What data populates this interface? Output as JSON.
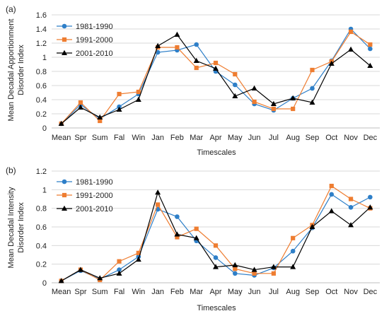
{
  "colors": {
    "series_1981_1990": "#2e7fc8",
    "series_1991_2000": "#ee7d31",
    "series_2001_2010": "#000000",
    "grid": "#d9d9d9",
    "axis": "#bfbfbf"
  },
  "chart_data": [
    {
      "type": "line",
      "panel_label": "(a)",
      "xlabel": "Timescales",
      "ylabel_lines": [
        "Mean Decadal Apportionment",
        "Disorder Index"
      ],
      "ylim": [
        0,
        1.6
      ],
      "yticks": [
        "0",
        "0.2",
        "0.4",
        "0.6",
        "0.8",
        "1",
        "1.2",
        "1.4",
        "1.6"
      ],
      "grid": "horizontal",
      "legend_position": "top-left",
      "categories": [
        "Mean",
        "Spr",
        "Sum",
        "Fal",
        "Win",
        "Jan",
        "Feb",
        "Mar",
        "Apr",
        "May",
        "Jun",
        "Jul",
        "Aug",
        "Sep",
        "Oct",
        "Nov",
        "Dec"
      ],
      "series": [
        {
          "name": "1981-1990",
          "marker": "circle",
          "values": [
            0.06,
            0.33,
            0.13,
            0.3,
            0.48,
            1.07,
            1.1,
            1.18,
            0.8,
            0.61,
            0.34,
            0.25,
            0.42,
            0.56,
            0.95,
            1.4,
            1.12
          ]
        },
        {
          "name": "1991-2000",
          "marker": "square",
          "values": [
            0.06,
            0.36,
            0.1,
            0.48,
            0.51,
            1.14,
            1.14,
            0.85,
            0.92,
            0.76,
            0.37,
            0.27,
            0.27,
            0.82,
            0.94,
            1.36,
            1.18
          ]
        },
        {
          "name": "2001-2010",
          "marker": "triangle",
          "values": [
            0.06,
            0.29,
            0.15,
            0.26,
            0.4,
            1.16,
            1.32,
            0.95,
            0.84,
            0.45,
            0.56,
            0.34,
            0.42,
            0.36,
            0.91,
            1.11,
            0.88
          ]
        }
      ]
    },
    {
      "type": "line",
      "panel_label": "(b)",
      "xlabel": "Timescales",
      "ylabel_lines": [
        "Mean Decadal Intensity",
        "Disorder Index"
      ],
      "ylim": [
        0,
        1.2
      ],
      "yticks": [
        "0",
        "0.2",
        "0.4",
        "0.6",
        "0.8",
        "1",
        "1.2"
      ],
      "grid": "horizontal",
      "legend_position": "top-left",
      "categories": [
        "Mean",
        "Spr",
        "Sum",
        "Fal",
        "Win",
        "Jan",
        "Feb",
        "Mar",
        "Apr",
        "May",
        "Jun",
        "Jul",
        "Aug",
        "Sep",
        "Oct",
        "Nov",
        "Dec"
      ],
      "series": [
        {
          "name": "1981-1990",
          "marker": "circle",
          "values": [
            0.02,
            0.13,
            0.04,
            0.14,
            0.28,
            0.79,
            0.71,
            0.45,
            0.27,
            0.1,
            0.08,
            0.16,
            0.34,
            0.59,
            0.95,
            0.81,
            0.92
          ]
        },
        {
          "name": "1991-2000",
          "marker": "square",
          "values": [
            0.02,
            0.14,
            0.03,
            0.23,
            0.32,
            0.84,
            0.49,
            0.58,
            0.4,
            0.15,
            0.1,
            0.1,
            0.48,
            0.62,
            1.04,
            0.9,
            0.8
          ]
        },
        {
          "name": "2001-2010",
          "marker": "triangle",
          "values": [
            0.02,
            0.14,
            0.05,
            0.1,
            0.25,
            0.97,
            0.52,
            0.48,
            0.17,
            0.19,
            0.14,
            0.17,
            0.17,
            0.6,
            0.77,
            0.62,
            0.81
          ]
        }
      ]
    }
  ]
}
